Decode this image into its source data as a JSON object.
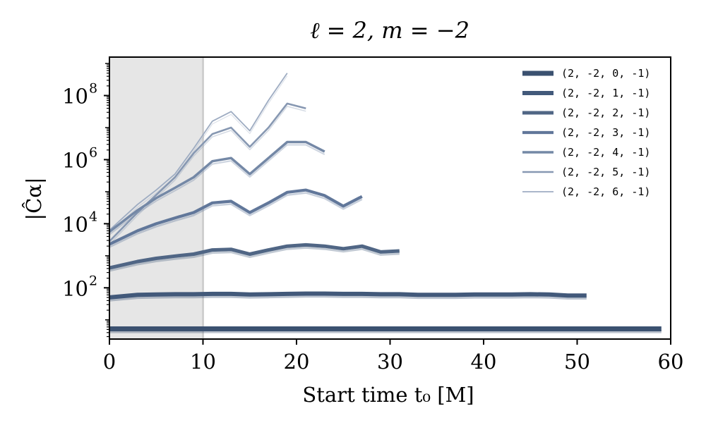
{
  "chart_data": {
    "type": "line",
    "title": "ℓ = 2, m = −2",
    "xlabel": "Start time t₀ [M]",
    "ylabel": "|Ĉα|",
    "xlim": [
      0,
      60
    ],
    "ylim_log10": [
      0.4,
      9.2
    ],
    "xscale": "linear",
    "yscale": "log",
    "shaded_region": {
      "x_from": 0,
      "x_to": 10
    },
    "x_ticks": [
      0,
      10,
      20,
      30,
      40,
      50,
      60
    ],
    "x_tick_labels": [
      "0",
      "10",
      "20",
      "30",
      "40",
      "50",
      "60"
    ],
    "y_ticks_log10": [
      2,
      4,
      6,
      8
    ],
    "y_tick_bases": [
      "10",
      "10",
      "10",
      "10"
    ],
    "y_tick_exponents": [
      "2",
      "4",
      "6",
      "8"
    ],
    "legend_position": "top-right",
    "series": [
      {
        "name": "(2, -2, 0, -1)",
        "color": "#3b5170",
        "x": [
          0,
          59
        ],
        "log10y": [
          0.72,
          0.72
        ]
      },
      {
        "name": "(2, -2, 1, -1)",
        "color": "#42597a",
        "x": [
          0,
          3,
          5,
          7,
          9,
          11,
          13,
          15,
          17,
          19,
          21,
          23,
          25,
          27,
          29,
          31,
          33,
          35,
          37,
          39,
          41,
          43,
          45,
          47,
          49,
          51
        ],
        "log10y": [
          1.7,
          1.78,
          1.79,
          1.8,
          1.8,
          1.81,
          1.81,
          1.79,
          1.8,
          1.81,
          1.82,
          1.82,
          1.81,
          1.81,
          1.8,
          1.8,
          1.78,
          1.78,
          1.78,
          1.79,
          1.79,
          1.79,
          1.8,
          1.79,
          1.76,
          1.76
        ]
      },
      {
        "name": "(2, -2, 2, -1)",
        "color": "#506685",
        "x": [
          0,
          3,
          5,
          7,
          9,
          11,
          13,
          15,
          17,
          19,
          21,
          23,
          25,
          27,
          29,
          31
        ],
        "log10y": [
          2.62,
          2.82,
          2.92,
          2.99,
          3.05,
          3.18,
          3.2,
          3.05,
          3.18,
          3.3,
          3.34,
          3.3,
          3.22,
          3.3,
          3.12,
          3.15
        ]
      },
      {
        "name": "(2, -2, 3, -1)",
        "color": "#61779a",
        "x": [
          0,
          3,
          5,
          7,
          9,
          11,
          13,
          15,
          17,
          19,
          21,
          23,
          25,
          27
        ],
        "log10y": [
          3.36,
          3.78,
          4.0,
          4.18,
          4.35,
          4.65,
          4.7,
          4.35,
          4.65,
          4.98,
          5.05,
          4.88,
          4.55,
          4.85
        ]
      },
      {
        "name": "(2, -2, 4, -1)",
        "color": "#7488a6",
        "x": [
          0,
          3,
          5,
          7,
          9,
          11,
          13,
          15,
          17,
          19,
          21,
          23
        ],
        "log10y": [
          3.75,
          4.42,
          4.8,
          5.12,
          5.45,
          5.95,
          6.05,
          5.55,
          6.05,
          6.55,
          6.55,
          6.25
        ]
      },
      {
        "name": "(2, -2, 5, -1)",
        "color": "#8798b2",
        "x": [
          0,
          3,
          5,
          7,
          9,
          11,
          13,
          15,
          17,
          19,
          21
        ],
        "log10y": [
          3.45,
          4.35,
          4.9,
          5.45,
          6.2,
          6.8,
          7.0,
          6.4,
          7.0,
          7.75,
          7.6
        ]
      },
      {
        "name": "(2, -2, 6, -1)",
        "color": "#9eacc2",
        "x": [
          0,
          3,
          5,
          7,
          9,
          11,
          13,
          15,
          17,
          19
        ],
        "log10y": [
          3.8,
          4.6,
          5.05,
          5.55,
          6.35,
          7.2,
          7.5,
          6.9,
          7.85,
          8.7
        ]
      }
    ],
    "line_widths": [
      7,
      6,
      5,
      4.2,
      3.5,
      2.6,
      1.8
    ]
  }
}
